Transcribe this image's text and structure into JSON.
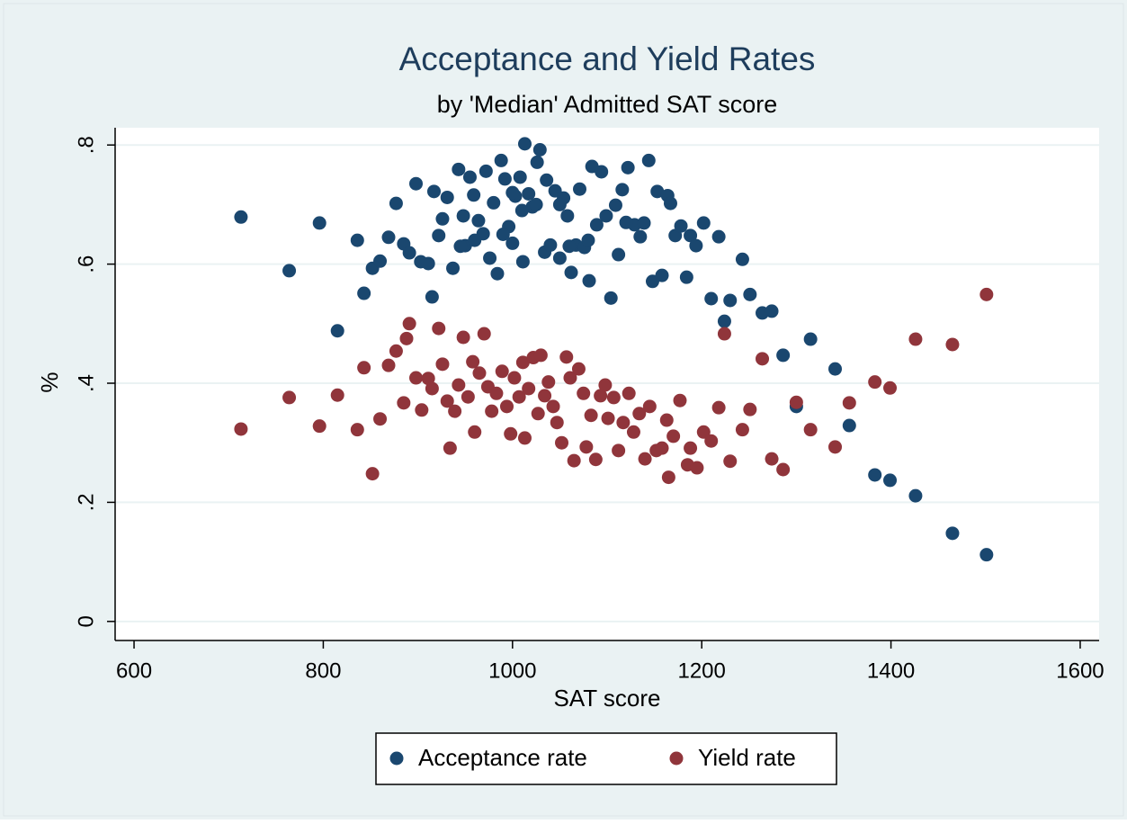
{
  "chart_data": {
    "type": "scatter",
    "title": "Acceptance and Yield Rates",
    "subtitle": "by 'Median' Admitted SAT score",
    "x_label": "SAT score",
    "y_label": "%",
    "xlim": [
      580,
      1620
    ],
    "ylim": [
      -0.032,
      0.829
    ],
    "xticks": [
      600,
      800,
      1000,
      1200,
      1400,
      1600
    ],
    "yticks": [
      0,
      {
        "value": 0.2,
        "label": ".2"
      },
      {
        "value": 0.4,
        "label": ".4"
      },
      {
        "value": 0.6,
        "label": ".6"
      },
      {
        "value": 0.8,
        "label": ".8"
      }
    ],
    "grid": true,
    "legend": "bottom",
    "series": [
      {
        "name": "Acceptance rate",
        "color": "#1a476f",
        "x": [
          713,
          764,
          796,
          815,
          836,
          843,
          852,
          860,
          869,
          877,
          885,
          891,
          898,
          903,
          911,
          915,
          917,
          922,
          926,
          931,
          937,
          943,
          948,
          950,
          955,
          959,
          964,
          969,
          972,
          976,
          980,
          984,
          988,
          992,
          996,
          1000,
          1003,
          1008,
          1011,
          1013,
          1017,
          1021,
          1026,
          1029,
          1034,
          1036,
          1040,
          1045,
          1050,
          1054,
          1058,
          1062,
          1067,
          1071,
          1076,
          1081,
          1084,
          1089,
          1094,
          1099,
          1104,
          1109,
          1112,
          1116,
          1122,
          1129,
          1135,
          1139,
          1144,
          1148,
          1153,
          1158,
          1164,
          1167,
          1172,
          1178,
          1184,
          1188,
          1194,
          1202,
          1210,
          1218,
          1224,
          1230,
          1243,
          1251,
          1264,
          1274,
          1286,
          1300,
          1315,
          1341,
          1356,
          1383,
          1399,
          1426,
          1465,
          1501,
          1000,
          1025,
          1010,
          960,
          1060,
          1080,
          945,
          990,
          1120,
          1050
        ],
        "values": [
          0.679,
          0.589,
          0.669,
          0.488,
          0.64,
          0.551,
          0.593,
          0.605,
          0.645,
          0.702,
          0.634,
          0.619,
          0.735,
          0.604,
          0.601,
          0.545,
          0.722,
          0.648,
          0.676,
          0.712,
          0.593,
          0.759,
          0.681,
          0.631,
          0.746,
          0.716,
          0.673,
          0.651,
          0.756,
          0.61,
          0.703,
          0.584,
          0.774,
          0.743,
          0.663,
          0.635,
          0.714,
          0.746,
          0.604,
          0.802,
          0.718,
          0.696,
          0.771,
          0.792,
          0.62,
          0.741,
          0.632,
          0.723,
          0.61,
          0.711,
          0.681,
          0.586,
          0.632,
          0.726,
          0.628,
          0.572,
          0.764,
          0.666,
          0.755,
          0.681,
          0.543,
          0.699,
          0.616,
          0.725,
          0.762,
          0.666,
          0.646,
          0.669,
          0.774,
          0.571,
          0.722,
          0.581,
          0.715,
          0.702,
          0.648,
          0.664,
          0.578,
          0.648,
          0.631,
          0.669,
          0.542,
          0.646,
          0.504,
          0.539,
          0.608,
          0.549,
          0.518,
          0.521,
          0.447,
          0.361,
          0.474,
          0.424,
          0.329,
          0.246,
          0.237,
          0.211,
          0.148,
          0.112,
          0.72,
          0.7,
          0.69,
          0.64,
          0.63,
          0.64,
          0.63,
          0.65,
          0.67,
          0.7
        ]
      },
      {
        "name": "Yield rate",
        "color": "#90353b",
        "x": [
          713,
          764,
          796,
          815,
          836,
          843,
          852,
          860,
          869,
          877,
          885,
          888,
          891,
          898,
          904,
          911,
          915,
          922,
          926,
          931,
          934,
          939,
          943,
          948,
          953,
          958,
          960,
          965,
          970,
          974,
          978,
          983,
          989,
          994,
          998,
          1002,
          1007,
          1011,
          1013,
          1017,
          1022,
          1027,
          1030,
          1034,
          1038,
          1043,
          1047,
          1052,
          1057,
          1061,
          1065,
          1070,
          1075,
          1078,
          1083,
          1088,
          1093,
          1098,
          1101,
          1107,
          1112,
          1117,
          1123,
          1128,
          1134,
          1140,
          1145,
          1152,
          1158,
          1163,
          1165,
          1170,
          1177,
          1185,
          1188,
          1195,
          1202,
          1210,
          1218,
          1224,
          1230,
          1243,
          1251,
          1264,
          1274,
          1286,
          1300,
          1315,
          1341,
          1356,
          1383,
          1399,
          1426,
          1465,
          1501
        ],
        "values": [
          0.323,
          0.376,
          0.328,
          0.38,
          0.322,
          0.426,
          0.248,
          0.34,
          0.43,
          0.454,
          0.367,
          0.475,
          0.5,
          0.409,
          0.355,
          0.408,
          0.391,
          0.492,
          0.432,
          0.37,
          0.291,
          0.353,
          0.397,
          0.477,
          0.377,
          0.436,
          0.318,
          0.417,
          0.483,
          0.394,
          0.353,
          0.383,
          0.42,
          0.361,
          0.315,
          0.409,
          0.377,
          0.435,
          0.308,
          0.391,
          0.443,
          0.349,
          0.447,
          0.379,
          0.402,
          0.361,
          0.334,
          0.3,
          0.444,
          0.409,
          0.27,
          0.424,
          0.383,
          0.293,
          0.346,
          0.272,
          0.379,
          0.397,
          0.341,
          0.376,
          0.287,
          0.334,
          0.383,
          0.318,
          0.349,
          0.273,
          0.361,
          0.287,
          0.291,
          0.338,
          0.242,
          0.311,
          0.371,
          0.263,
          0.291,
          0.258,
          0.318,
          0.303,
          0.359,
          0.483,
          0.269,
          0.322,
          0.356,
          0.441,
          0.273,
          0.255,
          0.368,
          0.322,
          0.293,
          0.367,
          0.402,
          0.392,
          0.474,
          0.465,
          0.549
        ]
      }
    ]
  }
}
